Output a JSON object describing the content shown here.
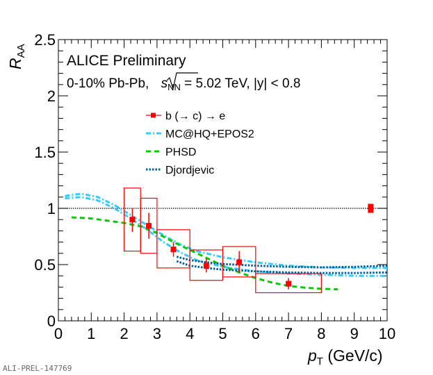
{
  "chart_data": {
    "type": "scatter",
    "title": "ALICE Preliminary",
    "subtitle_prefix": "0-10% Pb-Pb, ",
    "subtitle_sqrt": "s",
    "subtitle_sub": "NN",
    "subtitle_suffix": " = 5.02 TeV, |y| < 0.8",
    "ylabel": "R",
    "ylabel_sub": "AA",
    "xlabel": "p",
    "xlabel_sub": "T",
    "xlabel_unit": " (GeV/c)",
    "xlim": [
      0,
      10
    ],
    "ylim": [
      0,
      2.5
    ],
    "xticks": [
      "0",
      "1",
      "2",
      "3",
      "4",
      "5",
      "6",
      "7",
      "8",
      "9",
      "10"
    ],
    "yticks": [
      {
        "v": 0,
        "label": "0"
      },
      {
        "v": 0.5,
        "label": "0.5"
      },
      {
        "v": 1,
        "label": "1"
      },
      {
        "v": 1.5,
        "label": "1.5"
      },
      {
        "v": 2,
        "label": "2"
      },
      {
        "v": 2.5,
        "label": "2.5"
      }
    ],
    "reference_line": 1,
    "normalization_uncertainty": {
      "x": 9.5,
      "low": 0.96,
      "high": 1.04
    },
    "data": {
      "name": "b (→ c) → e",
      "color": "#ff0000",
      "points": [
        {
          "x": 2.25,
          "y": 0.9,
          "stat": [
            0.79,
            1.0
          ],
          "sys_x": [
            2.0,
            2.5
          ],
          "sys": [
            0.62,
            1.18
          ]
        },
        {
          "x": 2.75,
          "y": 0.845,
          "stat": [
            0.73,
            0.96
          ],
          "sys_x": [
            2.5,
            3.0
          ],
          "sys": [
            0.6,
            1.09
          ]
        },
        {
          "x": 3.5,
          "y": 0.635,
          "stat": [
            0.57,
            0.7
          ],
          "sys_x": [
            3.0,
            4.0
          ],
          "sys": [
            0.47,
            0.81
          ]
        },
        {
          "x": 4.5,
          "y": 0.49,
          "stat": [
            0.43,
            0.555
          ],
          "sys_x": [
            4.0,
            5.0
          ],
          "sys": [
            0.36,
            0.63
          ]
        },
        {
          "x": 5.5,
          "y": 0.52,
          "stat": [
            0.43,
            0.62
          ],
          "sys_x": [
            5.0,
            6.0
          ],
          "sys": [
            0.39,
            0.66
          ]
        },
        {
          "x": 7.0,
          "y": 0.33,
          "stat": [
            0.28,
            0.38
          ],
          "sys_x": [
            6.0,
            8.0
          ],
          "sys": [
            0.25,
            0.42
          ]
        }
      ]
    },
    "models": [
      {
        "name": "MC@HQ+EPOS2",
        "color": "#33ccff",
        "dash": "7 3 2 3",
        "curves": [
          [
            [
              0.2,
              1.11
            ],
            [
              0.7,
              1.13
            ],
            [
              1.2,
              1.1
            ],
            [
              1.7,
              1.03
            ],
            [
              2.2,
              0.94
            ],
            [
              2.7,
              0.85
            ],
            [
              3.2,
              0.76
            ],
            [
              3.7,
              0.68
            ],
            [
              4.2,
              0.62
            ],
            [
              5,
              0.565
            ],
            [
              6,
              0.52
            ],
            [
              7,
              0.49
            ],
            [
              8,
              0.475
            ],
            [
              9,
              0.47
            ],
            [
              10,
              0.47
            ]
          ],
          [
            [
              0.2,
              1.09
            ],
            [
              0.7,
              1.1
            ],
            [
              1.2,
              1.07
            ],
            [
              1.7,
              1.0
            ],
            [
              2.2,
              0.91
            ],
            [
              2.7,
              0.81
            ],
            [
              3.2,
              0.7
            ],
            [
              3.7,
              0.61
            ],
            [
              4.2,
              0.54
            ],
            [
              5,
              0.48
            ],
            [
              6,
              0.44
            ],
            [
              7,
              0.42
            ],
            [
              8,
              0.41
            ],
            [
              9,
              0.4
            ],
            [
              10,
              0.4
            ]
          ]
        ]
      },
      {
        "name": "PHSD",
        "color": "#00cc00",
        "dash": "7 5",
        "curves": [
          [
            [
              0.4,
              0.92
            ],
            [
              1,
              0.91
            ],
            [
              1.5,
              0.89
            ],
            [
              2,
              0.87
            ],
            [
              2.5,
              0.84
            ],
            [
              3,
              0.78
            ],
            [
              3.5,
              0.7
            ],
            [
              4,
              0.63
            ],
            [
              4.5,
              0.56
            ],
            [
              5,
              0.49
            ],
            [
              5.5,
              0.43
            ],
            [
              6,
              0.38
            ],
            [
              6.5,
              0.34
            ],
            [
              7,
              0.31
            ],
            [
              7.5,
              0.295
            ],
            [
              8,
              0.285
            ],
            [
              8.5,
              0.28
            ]
          ]
        ]
      },
      {
        "name": "Djordjevic",
        "color": "#005f99",
        "dash": "2.5 2",
        "curves": [
          [
            [
              3.6,
              0.57
            ],
            [
              4,
              0.54
            ],
            [
              4.5,
              0.52
            ],
            [
              5,
              0.505
            ],
            [
              6,
              0.49
            ],
            [
              7,
              0.48
            ],
            [
              8,
              0.475
            ],
            [
              9,
              0.48
            ],
            [
              10,
              0.49
            ]
          ],
          [
            [
              3.6,
              0.53
            ],
            [
              4,
              0.49
            ],
            [
              4.5,
              0.47
            ],
            [
              5,
              0.455
            ],
            [
              6,
              0.44
            ],
            [
              7,
              0.43
            ],
            [
              8,
              0.425
            ],
            [
              9,
              0.425
            ],
            [
              10,
              0.43
            ]
          ]
        ]
      }
    ]
  },
  "footer": {
    "id": "ALI-PREL-147769"
  }
}
